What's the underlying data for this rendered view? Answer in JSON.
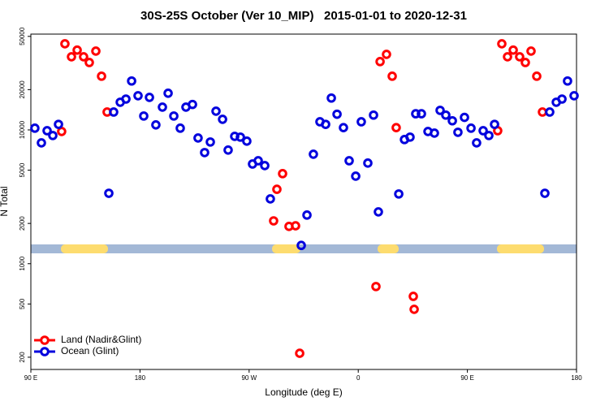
{
  "chart_data": {
    "type": "scatter",
    "title": "30S-25S October (Ver 10_MIP)   2015-01-01 to 2020-12-31",
    "x_label": "Longitude (deg E)",
    "y_label": "N Total",
    "xlim": [
      90,
      540
    ],
    "xticks": [
      {
        "value": 90,
        "label": "90 E"
      },
      {
        "value": 180,
        "label": "180"
      },
      {
        "value": 270,
        "label": "90 W"
      },
      {
        "value": 360,
        "label": "0"
      },
      {
        "value": 450,
        "label": "90 E"
      },
      {
        "value": 540,
        "label": "180"
      }
    ],
    "ylim": [
      162,
      52000
    ],
    "yticks": [
      200,
      500,
      1000,
      2000,
      5000,
      10000,
      20000,
      50000
    ],
    "log_y": true,
    "legend": "bottomleft",
    "series": [
      {
        "name": "Land (Nadir&Glint)",
        "color": "#ff0000",
        "x": [
          118.1,
          123.5,
          128.2,
          133.5,
          138.2,
          143.6,
          148.3,
          152.9,
          115.4,
          290.2,
          292.9,
          297.6,
          302.9,
          308.3,
          311.7,
          374.6,
          378,
          383.3,
          388,
          391.3,
          405.4,
          406.1,
          478.4,
          483.1,
          487.8,
          493.1,
          497.8,
          502.5,
          507.2,
          511.9,
          475
        ],
        "values": [
          44000,
          35200,
          39500,
          35200,
          31900,
          38800,
          25200,
          13600,
          9730,
          2090,
          3600,
          4710,
          1900,
          1920,
          214,
          675,
          32400,
          36700,
          25200,
          10400,
          570,
          456,
          44000,
          35200,
          39500,
          35200,
          31900,
          38800,
          25200,
          13600,
          9860
        ]
      },
      {
        "name": "Ocean (Glint)",
        "color": "#0000dd",
        "x": [
          93.3,
          98.7,
          103.4,
          108.1,
          112.8,
          154.3,
          158.3,
          163.7,
          168.4,
          173.1,
          178.4,
          183.1,
          187.8,
          193.1,
          198.5,
          203.2,
          207.9,
          213.2,
          217.9,
          223.3,
          227.9,
          233.3,
          238,
          242.7,
          248.1,
          252.7,
          258.1,
          262.8,
          268.1,
          272.8,
          277.5,
          282.9,
          287.5,
          313,
          317.7,
          323,
          328.4,
          333.1,
          337.8,
          342.5,
          347.8,
          352.5,
          357.9,
          362.5,
          367.9,
          372.6,
          376.6,
          393.4,
          398.1,
          402.7,
          407.4,
          412.1,
          417.5,
          422.8,
          427.5,
          432.2,
          437.6,
          442.2,
          447.6,
          453,
          457.6,
          463,
          467.7,
          472.4,
          513.9,
          517.9,
          523.3,
          528,
          532.6,
          538
        ],
        "values": [
          10300,
          8000,
          9860,
          9080,
          11000,
          3360,
          13600,
          16100,
          17000,
          23200,
          18000,
          12700,
          17500,
          10900,
          14800,
          18800,
          12700,
          10300,
          14800,
          15500,
          8700,
          6770,
          8120,
          13800,
          12000,
          7070,
          8950,
          8830,
          8240,
          5560,
          5880,
          5410,
          3050,
          1370,
          2310,
          6580,
          11500,
          11000,
          17300,
          13100,
          10400,
          5880,
          4510,
          11500,
          5650,
          12900,
          2440,
          3320,
          8470,
          8830,
          13200,
          13200,
          9730,
          9460,
          14000,
          12900,
          11700,
          9600,
          12400,
          10300,
          8000,
          9860,
          9080,
          11000,
          3360,
          13600,
          16100,
          17000,
          23200,
          18000
        ]
      }
    ]
  }
}
